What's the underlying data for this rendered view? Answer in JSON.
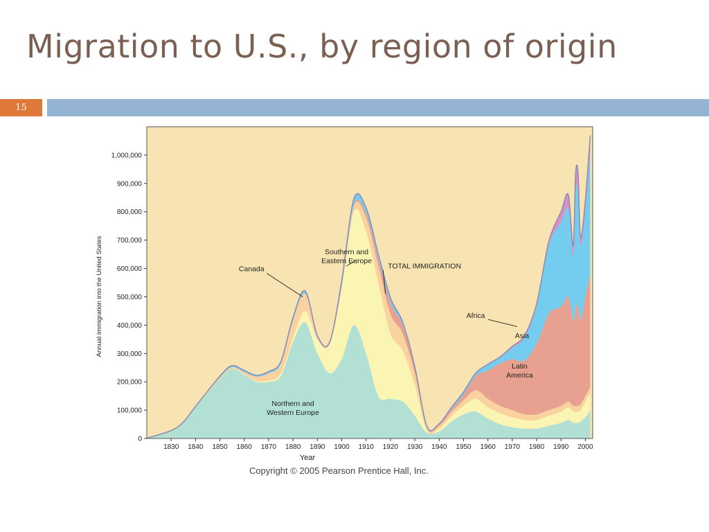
{
  "slide": {
    "title": "Migration to U.S., by region of origin",
    "number": "15",
    "copyright": "Copyright © 2005 Pearson Prentice Hall, Inc."
  },
  "colors": {
    "title": "#7a5f52",
    "number_box": "#e0783a",
    "header_bar": "#95b3d3",
    "plot_background": "#f8e4b2"
  },
  "chart_data": {
    "type": "area",
    "stacked": true,
    "ylabel": "Annual immigration into the United States",
    "xlabel": "Year",
    "xlim": [
      1820,
      2003
    ],
    "ylim": [
      0,
      1100000
    ],
    "xticks": [
      1830,
      1840,
      1850,
      1860,
      1870,
      1880,
      1890,
      1900,
      1910,
      1920,
      1930,
      1940,
      1950,
      1960,
      1970,
      1980,
      1990,
      2000
    ],
    "yticks": [
      0,
      100000,
      200000,
      300000,
      400000,
      500000,
      600000,
      700000,
      800000,
      900000,
      1000000
    ],
    "ytick_labels": [
      "0",
      "100,000",
      "200,000",
      "300,000",
      "400,000",
      "500,000",
      "600,000",
      "700,000",
      "800,000",
      "900,000",
      "1,000,000"
    ],
    "x": [
      1820,
      1830,
      1835,
      1840,
      1850,
      1855,
      1860,
      1865,
      1870,
      1875,
      1880,
      1885,
      1890,
      1895,
      1900,
      1905,
      1910,
      1915,
      1920,
      1925,
      1930,
      1935,
      1940,
      1945,
      1950,
      1955,
      1960,
      1965,
      1970,
      1975,
      1980,
      1985,
      1990,
      1993,
      1995,
      1996,
      1997,
      1998,
      2000,
      2002
    ],
    "series": [
      {
        "name": "Northern and Western Europe",
        "color": "#b2e0d4",
        "values": [
          0,
          25000,
          55000,
          110000,
          210000,
          245000,
          225000,
          200000,
          200000,
          220000,
          340000,
          410000,
          300000,
          230000,
          280000,
          400000,
          300000,
          150000,
          140000,
          130000,
          80000,
          20000,
          25000,
          60000,
          85000,
          95000,
          70000,
          50000,
          40000,
          35000,
          35000,
          45000,
          55000,
          65000,
          55000,
          55000,
          55000,
          60000,
          75000,
          100000
        ]
      },
      {
        "name": "Southern and Eastern Europe",
        "color": "#fbf5b4",
        "values": [
          0,
          0,
          0,
          0,
          0,
          0,
          1000,
          3000,
          5000,
          8000,
          15000,
          40000,
          50000,
          100000,
          250000,
          400000,
          430000,
          400000,
          230000,
          180000,
          110000,
          7000,
          10000,
          18000,
          30000,
          45000,
          40000,
          40000,
          35000,
          30000,
          30000,
          35000,
          40000,
          45000,
          40000,
          40000,
          40000,
          40000,
          55000,
          60000
        ]
      },
      {
        "name": "Canada",
        "color": "#fad2a0",
        "values": [
          1000,
          3000,
          3000,
          3000,
          5000,
          6000,
          8000,
          15000,
          25000,
          35000,
          60000,
          60000,
          8000,
          5000,
          10000,
          20000,
          50000,
          60000,
          70000,
          60000,
          40000,
          10000,
          10000,
          15000,
          20000,
          30000,
          30000,
          25000,
          25000,
          20000,
          20000,
          20000,
          20000,
          20000,
          20000,
          20000,
          20000,
          20000,
          20000,
          20000
        ]
      },
      {
        "name": "Latin America",
        "color": "#e8a190",
        "values": [
          0,
          0,
          0,
          0,
          0,
          0,
          0,
          0,
          0,
          0,
          1000,
          1000,
          1000,
          1000,
          1000,
          5000,
          15000,
          25000,
          40000,
          30000,
          20000,
          3000,
          5000,
          10000,
          20000,
          50000,
          100000,
          150000,
          180000,
          190000,
          250000,
          340000,
          350000,
          370000,
          300000,
          350000,
          350000,
          300000,
          350000,
          400000
        ]
      },
      {
        "name": "Asia",
        "color": "#74cdef",
        "values": [
          0,
          0,
          0,
          0,
          5000,
          6000,
          6000,
          5000,
          6000,
          8000,
          10000,
          10000,
          4000,
          3000,
          15000,
          20000,
          18000,
          15000,
          15000,
          10000,
          3000,
          2000,
          2000,
          5000,
          8000,
          10000,
          20000,
          20000,
          40000,
          80000,
          130000,
          240000,
          300000,
          310000,
          230000,
          410000,
          400000,
          260000,
          300000,
          430000
        ]
      },
      {
        "name": "Africa",
        "color": "#d890c8",
        "values": [
          0,
          0,
          0,
          0,
          0,
          0,
          0,
          0,
          0,
          0,
          0,
          0,
          0,
          0,
          0,
          1000,
          1000,
          1000,
          1000,
          1000,
          0,
          0,
          0,
          1000,
          1000,
          1000,
          2000,
          3000,
          5000,
          8000,
          10000,
          15000,
          35000,
          50000,
          35000,
          60000,
          70000,
          30000,
          40000,
          60000
        ]
      }
    ],
    "total_immigration_label": "TOTAL IMMIGRATION",
    "annotations": [
      {
        "text": "Southern and Eastern Europe",
        "lines": [
          "Southern and",
          "Eastern Europe"
        ],
        "at": [
          1902,
          650000
        ],
        "target": [
          1906,
          630000
        ],
        "leader": true
      },
      {
        "text": "Canada",
        "lines": [
          "Canada"
        ],
        "at": [
          1863,
          590000
        ],
        "target": [
          1884,
          500000
        ],
        "leader": true
      },
      {
        "text": "TOTAL IMMIGRATION",
        "lines": [
          "TOTAL IMMIGRATION"
        ],
        "at": [
          1934,
          600000
        ],
        "target": [
          1918,
          510000
        ],
        "leader": true
      },
      {
        "text": "Africa",
        "lines": [
          "Africa"
        ],
        "at": [
          1955,
          425000
        ],
        "target": [
          1972,
          395000
        ],
        "leader": true
      },
      {
        "text": "Asia",
        "lines": [
          "Asia"
        ],
        "at": [
          1974,
          355000
        ],
        "leader": false
      },
      {
        "text": "Latin America",
        "lines": [
          "Latin",
          "America"
        ],
        "at": [
          1973,
          247000
        ],
        "leader": false
      },
      {
        "text": "Northern and Western Europe",
        "lines": [
          "Northern and",
          "Western Europe"
        ],
        "at": [
          1880,
          115000
        ],
        "leader": false
      }
    ]
  }
}
